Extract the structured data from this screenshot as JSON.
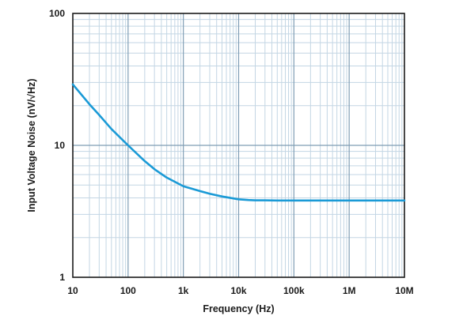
{
  "chart_data": {
    "type": "line",
    "xlabel": "Frequency (Hz)",
    "ylabel": "Input Voltage Noise (nV/√Hz)",
    "xscale": "log",
    "yscale": "log",
    "xlim": [
      10,
      10000000
    ],
    "ylim": [
      1,
      100
    ],
    "grid": true,
    "x_tick_labels": [
      "10",
      "100",
      "1k",
      "10k",
      "100k",
      "1M",
      "10M"
    ],
    "y_tick_labels": [
      "1",
      "10",
      "100"
    ],
    "series": [
      {
        "color": "#1a9ad6",
        "x": [
          10,
          20,
          30,
          50,
          100,
          200,
          300,
          500,
          1000,
          2000,
          3000,
          5000,
          10000,
          15000,
          20000,
          30000,
          50000,
          100000,
          1000000,
          10000000
        ],
        "y": [
          29,
          20.5,
          17,
          13.3,
          10,
          7.6,
          6.6,
          5.7,
          4.9,
          4.5,
          4.3,
          4.1,
          3.9,
          3.85,
          3.83,
          3.83,
          3.82,
          3.82,
          3.82,
          3.82
        ]
      }
    ]
  }
}
